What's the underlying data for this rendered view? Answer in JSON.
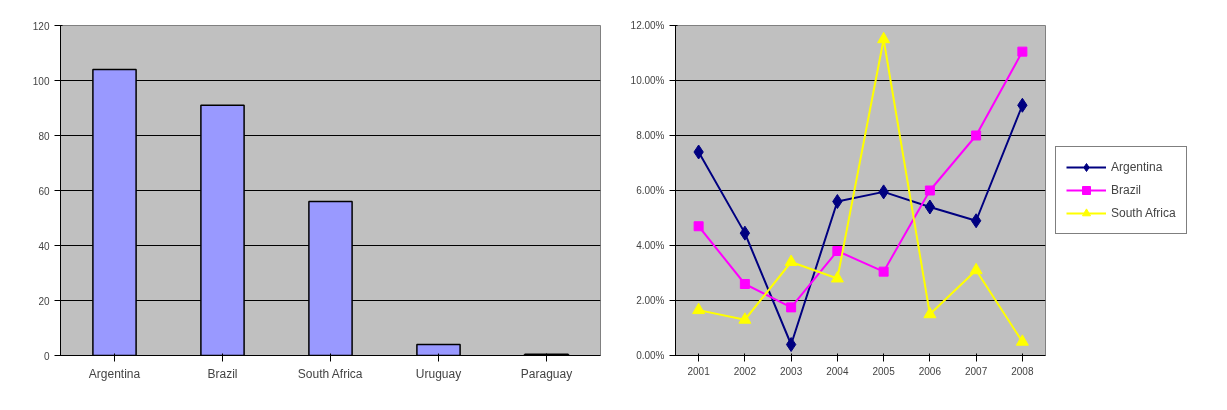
{
  "chart_data": [
    {
      "type": "bar",
      "categories": [
        "Argentina",
        "Brazil",
        "South Africa",
        "Uruguay",
        "Paraguay"
      ],
      "values": [
        104,
        91,
        56,
        4,
        0.5
      ],
      "color": "#9999ff",
      "ylim": [
        0,
        120
      ],
      "yticks": [
        0,
        20,
        40,
        60,
        80,
        100,
        120
      ],
      "grid": "y"
    },
    {
      "type": "line",
      "categories": [
        "2001",
        "2002",
        "2003",
        "2004",
        "2005",
        "2006",
        "2007",
        "2008"
      ],
      "series": [
        {
          "name": "Argentina",
          "color": "#000080",
          "marker": "diamond",
          "values": [
            7.4,
            4.45,
            0.4,
            5.6,
            5.95,
            5.4,
            4.9,
            9.1
          ]
        },
        {
          "name": "Brazil",
          "color": "#ff00ff",
          "marker": "square",
          "values": [
            4.7,
            2.6,
            1.75,
            3.8,
            3.05,
            6.0,
            8.0,
            11.05
          ]
        },
        {
          "name": "South Africa",
          "color": "#ffff00",
          "marker": "triangle",
          "values": [
            1.65,
            1.3,
            3.4,
            2.8,
            11.5,
            1.5,
            3.1,
            0.5
          ]
        }
      ],
      "ylim": [
        0,
        12
      ],
      "yticks": [
        {
          "value": 0,
          "label": "0.00%"
        },
        {
          "value": 2,
          "label": "2.00%"
        },
        {
          "value": 4,
          "label": "4.00%"
        },
        {
          "value": 6,
          "label": "6.00%"
        },
        {
          "value": 8,
          "label": "8.00%"
        },
        {
          "value": 10,
          "label": "10.00%"
        },
        {
          "value": 12,
          "label": "12.00%"
        }
      ],
      "grid": "y",
      "legend": "right",
      "line_style": "solid"
    }
  ]
}
